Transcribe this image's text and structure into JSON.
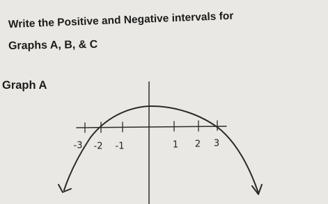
{
  "header": {
    "title": [
      "Write the Positive and Negative intervals for",
      "Graphs A, B, & C"
    ]
  },
  "graph": {
    "label": "Graph A",
    "tick_labels": [
      "-3",
      "-2",
      "-1",
      "1",
      "2",
      "3"
    ]
  }
}
